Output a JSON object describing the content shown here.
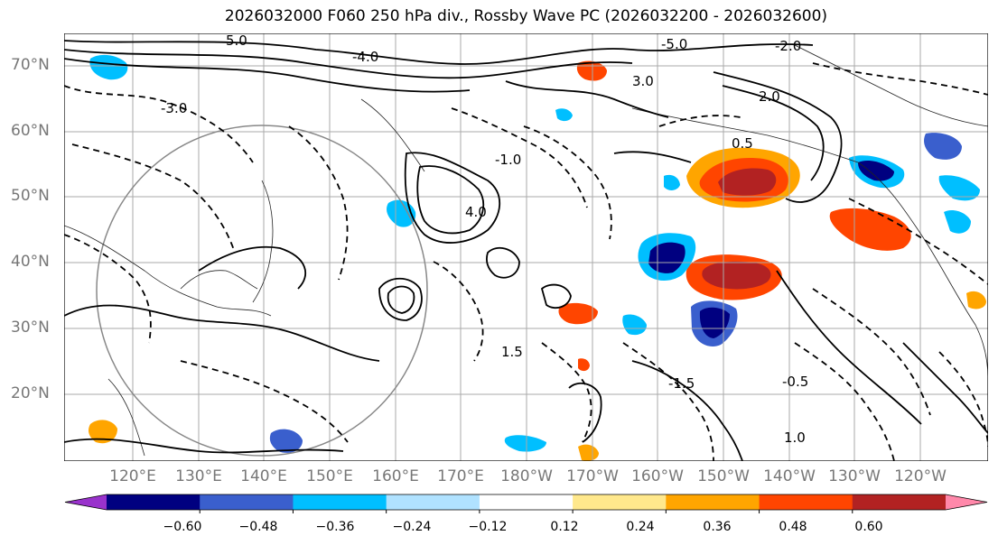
{
  "title": "2026032000 F060 250 hPa div., Rossby Wave PC (2026032200 - 2026032600)",
  "lat_labels": [
    "70°N",
    "60°N",
    "50°N",
    "40°N",
    "30°N",
    "20°N"
  ],
  "lon_labels": [
    "120°E",
    "130°E",
    "140°E",
    "150°E",
    "160°E",
    "170°E",
    "180°W",
    "170°W",
    "160°W",
    "150°W",
    "140°W",
    "130°W",
    "120°W"
  ],
  "colorbar": {
    "ticks": [
      "−0.60",
      "−0.48",
      "−0.36",
      "−0.24",
      "−0.12",
      "0.12",
      "0.24",
      "0.36",
      "0.48",
      "0.60"
    ],
    "colors": [
      "#9932cc",
      "#000080",
      "#3a5fcd",
      "#00bfff",
      "#b0e2ff",
      "#ffffff",
      "#ffe88c",
      "#ffa500",
      "#ff4500",
      "#b22222",
      "#ff88aa"
    ]
  },
  "contour_labels": [
    "-5.0",
    "-4.0",
    "-2.0",
    "-3.0",
    "-1.0",
    "-1.5",
    "-0.5",
    "0.5",
    "1.0",
    "1.5",
    "2.0",
    "3.0",
    "4.0",
    "5.0"
  ]
}
